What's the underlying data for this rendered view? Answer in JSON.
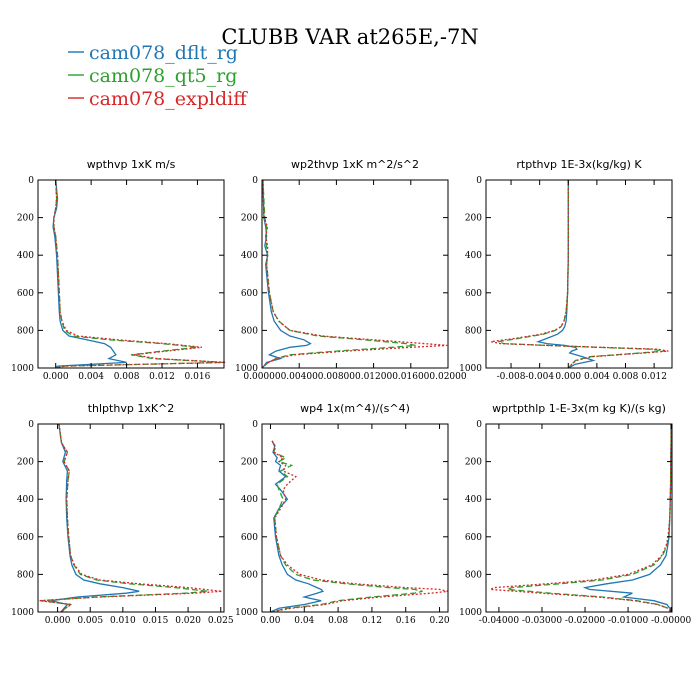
{
  "title": "CLUBB VAR at265E,-7N",
  "legend": [
    {
      "label": "cam078_dflt_rg",
      "color": "#1f77b4",
      "dash": "none"
    },
    {
      "label": "cam078_qt5_rg",
      "color": "#2ca02c",
      "dash": "6,3"
    },
    {
      "label": "cam078_expldiff",
      "color": "#d62728",
      "dash": "2,2"
    }
  ],
  "chart_data": [
    {
      "type": "line",
      "title": "wpthvp  1xK m/s",
      "xlim": [
        -0.002,
        0.019
      ],
      "ylim": [
        0,
        1000
      ],
      "y_inverted": true,
      "xticks": [
        0.0,
        0.004,
        0.008,
        0.012,
        0.016
      ],
      "xtick_labels": [
        "0.000",
        "0.004",
        "0.008",
        "0.012",
        "0.016"
      ],
      "yticks": [
        0,
        200,
        400,
        600,
        800,
        1000
      ],
      "ytick_labels": [
        "0",
        "200",
        "400",
        "600",
        "800",
        "1000"
      ],
      "y": [
        0,
        100,
        150,
        200,
        250,
        300,
        400,
        500,
        600,
        700,
        750,
        800,
        830,
        850,
        870,
        890,
        910,
        930,
        950,
        970,
        990,
        1000
      ],
      "series": [
        {
          "name": "cam078_dflt_rg",
          "x": [
            0.0,
            0.0002,
            0.0001,
            -0.0002,
            -0.0003,
            -0.0001,
            0.0001,
            0.0002,
            0.0003,
            0.0004,
            0.0005,
            0.0008,
            0.0015,
            0.0035,
            0.0055,
            0.0062,
            0.0065,
            0.0068,
            0.006,
            0.008,
            0.0002,
            0.0
          ]
        },
        {
          "name": "cam078_qt5_rg",
          "x": [
            0.0,
            0.0001,
            0.0,
            -0.0002,
            -0.0002,
            0.0,
            0.0002,
            0.0003,
            0.0004,
            0.0005,
            0.0007,
            0.001,
            0.002,
            0.006,
            0.012,
            0.016,
            0.012,
            0.0085,
            0.011,
            0.019,
            0.001,
            0.0
          ]
        },
        {
          "name": "cam078_expldiff",
          "x": [
            0.0,
            0.0001,
            0.0,
            -0.0002,
            -0.0002,
            0.0,
            0.0002,
            0.0003,
            0.0004,
            0.0005,
            0.0007,
            0.0012,
            0.0025,
            0.007,
            0.0125,
            0.0165,
            0.0125,
            0.0088,
            0.0115,
            0.0192,
            0.001,
            0.0
          ]
        }
      ]
    },
    {
      "type": "line",
      "title": "wp2thvp  1xK m^2/s^2",
      "xlim": [
        0.0,
        0.02
      ],
      "ylim": [
        0,
        1000
      ],
      "y_inverted": true,
      "xticks": [
        0.0,
        0.004,
        0.008,
        0.012,
        0.016,
        0.02
      ],
      "xtick_labels": [
        "0.00000",
        "0.00400",
        "0.00800",
        "0.01200",
        "0.01600",
        "0.02000"
      ],
      "yticks": [
        0,
        200,
        400,
        600,
        800,
        1000
      ],
      "ytick_labels": [
        "0",
        "200",
        "400",
        "600",
        "800",
        "1000"
      ],
      "y": [
        0,
        200,
        250,
        300,
        350,
        400,
        450,
        500,
        600,
        700,
        750,
        800,
        830,
        850,
        870,
        880,
        890,
        910,
        930,
        950,
        970,
        990,
        1000
      ],
      "series": [
        {
          "name": "cam078_dflt_rg",
          "x": [
            0.0001,
            0.0002,
            0.0004,
            0.0005,
            0.0003,
            0.0006,
            0.0004,
            0.0005,
            0.0007,
            0.001,
            0.0013,
            0.002,
            0.003,
            0.0045,
            0.0052,
            0.0048,
            0.003,
            0.0015,
            0.0008,
            0.002,
            0.0005,
            0.0002,
            0.0
          ]
        },
        {
          "name": "cam078_qt5_rg",
          "x": [
            0.0001,
            0.0003,
            0.0005,
            0.0004,
            0.0005,
            0.0006,
            0.0005,
            0.0006,
            0.0008,
            0.0012,
            0.0018,
            0.003,
            0.006,
            0.011,
            0.0155,
            0.0165,
            0.014,
            0.008,
            0.003,
            0.0015,
            0.0007,
            0.0002,
            0.0
          ]
        },
        {
          "name": "cam078_expldiff",
          "x": [
            0.0001,
            0.0002,
            0.0006,
            0.0004,
            0.0006,
            0.0006,
            0.0005,
            0.0006,
            0.0008,
            0.0012,
            0.0018,
            0.003,
            0.0065,
            0.012,
            0.0175,
            0.0199,
            0.016,
            0.009,
            0.0035,
            0.0015,
            0.0007,
            0.0002,
            0.0
          ]
        }
      ]
    },
    {
      "type": "line",
      "title": "rtpthvp  1E-3x(kg/kg) K",
      "xlim": [
        -0.0115,
        0.0145
      ],
      "ylim": [
        0,
        1000
      ],
      "y_inverted": true,
      "xticks": [
        -0.008,
        -0.004,
        0.0,
        0.004,
        0.008,
        0.012
      ],
      "xtick_labels": [
        "-0.008",
        "-0.004",
        "0.000",
        "0.004",
        "0.008",
        "0.012"
      ],
      "yticks": [
        0,
        200,
        400,
        600,
        800,
        1000
      ],
      "ytick_labels": [
        "0",
        "200",
        "400",
        "600",
        "800",
        "1000"
      ],
      "y": [
        0,
        200,
        400,
        600,
        700,
        750,
        780,
        800,
        820,
        840,
        860,
        870,
        880,
        890,
        900,
        910,
        920,
        940,
        960,
        980,
        1000
      ],
      "series": [
        {
          "name": "cam078_dflt_rg",
          "x": [
            0.0,
            0.0,
            0.0,
            -0.0001,
            -0.0002,
            -0.0003,
            -0.0005,
            -0.0008,
            -0.0015,
            -0.0028,
            -0.0042,
            -0.003,
            -0.0005,
            0.001,
            0.0012,
            0.0005,
            0.0002,
            0.002,
            0.0035,
            0.001,
            0.0
          ]
        },
        {
          "name": "cam078_qt5_rg",
          "x": [
            0.0,
            0.0,
            0.0,
            -0.0001,
            -0.0003,
            -0.0006,
            -0.001,
            -0.0018,
            -0.0035,
            -0.0065,
            -0.0098,
            -0.009,
            -0.003,
            0.004,
            0.0115,
            0.0135,
            0.01,
            0.003,
            0.001,
            0.0005,
            0.0
          ]
        },
        {
          "name": "cam078_expldiff",
          "x": [
            0.0,
            0.0,
            0.0,
            -0.0001,
            -0.0003,
            -0.0006,
            -0.001,
            -0.0019,
            -0.0038,
            -0.007,
            -0.0108,
            -0.0095,
            -0.003,
            0.0045,
            0.0125,
            0.014,
            0.0105,
            0.0033,
            0.0011,
            0.0005,
            0.0
          ]
        }
      ]
    },
    {
      "type": "line",
      "title": "thlpthvp  1xK^2",
      "xlim": [
        -0.003,
        0.0255
      ],
      "ylim": [
        0,
        1000
      ],
      "y_inverted": true,
      "xticks": [
        0.0,
        0.005,
        0.01,
        0.015,
        0.02,
        0.025
      ],
      "xtick_labels": [
        "0.000",
        "0.005",
        "0.010",
        "0.015",
        "0.020",
        "0.025"
      ],
      "yticks": [
        0,
        200,
        400,
        600,
        800,
        1000
      ],
      "ytick_labels": [
        "0",
        "200",
        "400",
        "600",
        "800",
        "1000"
      ],
      "y": [
        0,
        50,
        100,
        150,
        200,
        250,
        300,
        400,
        500,
        600,
        700,
        750,
        800,
        830,
        850,
        870,
        890,
        900,
        920,
        940,
        960,
        980,
        1000
      ],
      "series": [
        {
          "name": "cam078_dflt_rg",
          "x": [
            0.0002,
            0.0004,
            0.0006,
            0.0012,
            0.0008,
            0.0015,
            0.0014,
            0.0013,
            0.0014,
            0.0016,
            0.0019,
            0.0022,
            0.0028,
            0.004,
            0.0065,
            0.01,
            0.0125,
            0.0105,
            0.003,
            -0.001,
            0.0015,
            0.001,
            0.0005
          ]
        },
        {
          "name": "cam078_qt5_rg",
          "x": [
            0.0002,
            0.0004,
            0.0006,
            0.0015,
            0.001,
            0.0018,
            0.0016,
            0.0014,
            0.0015,
            0.0017,
            0.002,
            0.0025,
            0.0035,
            0.006,
            0.011,
            0.018,
            0.023,
            0.0195,
            0.006,
            -0.0025,
            0.002,
            0.0012,
            0.0006
          ]
        },
        {
          "name": "cam078_expldiff",
          "x": [
            0.0002,
            0.0004,
            0.0006,
            0.0015,
            0.001,
            0.0018,
            0.0016,
            0.0014,
            0.0015,
            0.0017,
            0.002,
            0.0026,
            0.0037,
            0.0065,
            0.0125,
            0.02,
            0.0252,
            0.021,
            0.0065,
            -0.0028,
            0.0021,
            0.0012,
            0.0006
          ]
        }
      ]
    },
    {
      "type": "line",
      "title": "wp4  1x(m^4)/(s^4)",
      "xlim": [
        -0.01,
        0.21
      ],
      "ylim": [
        0,
        1000
      ],
      "y_inverted": true,
      "xticks": [
        0.0,
        0.04,
        0.08,
        0.12,
        0.16,
        0.2
      ],
      "xtick_labels": [
        "0.00",
        "0.04",
        "0.08",
        "0.12",
        "0.16",
        "0.20"
      ],
      "yticks": [
        0,
        200,
        400,
        600,
        800,
        1000
      ],
      "ytick_labels": [
        "0",
        "200",
        "400",
        "600",
        "800",
        "1000"
      ],
      "y": [
        90,
        120,
        150,
        180,
        200,
        220,
        250,
        280,
        320,
        350,
        400,
        450,
        500,
        600,
        700,
        750,
        800,
        830,
        850,
        870,
        880,
        890,
        900,
        920,
        940,
        960,
        980,
        1000
      ],
      "series": [
        {
          "name": "cam078_dflt_rg",
          "x": [
            0.002,
            0.005,
            0.003,
            0.008,
            0.006,
            0.012,
            0.01,
            0.018,
            0.006,
            0.012,
            0.02,
            0.01,
            0.004,
            0.006,
            0.01,
            0.014,
            0.02,
            0.03,
            0.045,
            0.055,
            0.06,
            0.062,
            0.055,
            0.04,
            0.06,
            0.04,
            0.01,
            0.0
          ]
        },
        {
          "name": "cam078_qt5_rg",
          "x": [
            0.002,
            0.006,
            0.004,
            0.018,
            0.01,
            0.025,
            0.012,
            0.02,
            0.008,
            0.01,
            0.015,
            0.01,
            0.005,
            0.007,
            0.012,
            0.018,
            0.03,
            0.05,
            0.09,
            0.14,
            0.17,
            0.18,
            0.17,
            0.12,
            0.08,
            0.06,
            0.02,
            0.0
          ]
        },
        {
          "name": "cam078_expldiff",
          "x": [
            0.002,
            0.006,
            0.004,
            0.015,
            0.01,
            0.018,
            0.015,
            0.03,
            0.02,
            0.015,
            0.018,
            0.012,
            0.005,
            0.007,
            0.012,
            0.02,
            0.035,
            0.06,
            0.1,
            0.16,
            0.2,
            0.21,
            0.19,
            0.13,
            0.085,
            0.065,
            0.025,
            0.0
          ]
        }
      ]
    },
    {
      "type": "line",
      "title": "wprtpthlp  1-E-3x(m kg K)/(s kg)",
      "xlim": [
        -0.043,
        0.0002
      ],
      "ylim": [
        0,
        1000
      ],
      "y_inverted": true,
      "xticks": [
        -0.04,
        -0.03,
        -0.02,
        -0.01,
        0.0
      ],
      "xtick_labels": [
        "-0.04000",
        "-0.03000",
        "-0.02000",
        "-0.01000",
        "-0.00000"
      ],
      "yticks": [
        0,
        200,
        400,
        600,
        800,
        1000
      ],
      "ytick_labels": [
        "0",
        "200",
        "400",
        "600",
        "800",
        "1000"
      ],
      "y": [
        0,
        100,
        200,
        300,
        400,
        500,
        600,
        650,
        700,
        750,
        800,
        830,
        850,
        870,
        880,
        900,
        920,
        940,
        960,
        980,
        1000
      ],
      "series": [
        {
          "name": "cam078_dflt_rg",
          "x": [
            0.0,
            0.0,
            -0.0001,
            -0.0001,
            -0.0002,
            -0.0003,
            -0.0005,
            -0.0008,
            -0.0012,
            -0.0025,
            -0.005,
            -0.009,
            -0.015,
            -0.02,
            -0.019,
            -0.009,
            -0.011,
            -0.004,
            -0.001,
            -0.0003,
            0.0
          ]
        },
        {
          "name": "cam078_qt5_rg",
          "x": [
            0.0,
            0.0,
            -0.0001,
            -0.0001,
            -0.0002,
            -0.0003,
            -0.0006,
            -0.001,
            -0.002,
            -0.004,
            -0.009,
            -0.016,
            -0.026,
            -0.037,
            -0.038,
            -0.028,
            -0.016,
            -0.008,
            -0.003,
            -0.0008,
            0.0
          ]
        },
        {
          "name": "cam078_expldiff",
          "x": [
            0.0,
            0.0,
            -0.0001,
            -0.0001,
            -0.0002,
            -0.0003,
            -0.0007,
            -0.0012,
            -0.0022,
            -0.0045,
            -0.01,
            -0.018,
            -0.029,
            -0.041,
            -0.042,
            -0.03,
            -0.017,
            -0.0085,
            -0.0032,
            -0.0008,
            0.0
          ]
        }
      ]
    }
  ]
}
